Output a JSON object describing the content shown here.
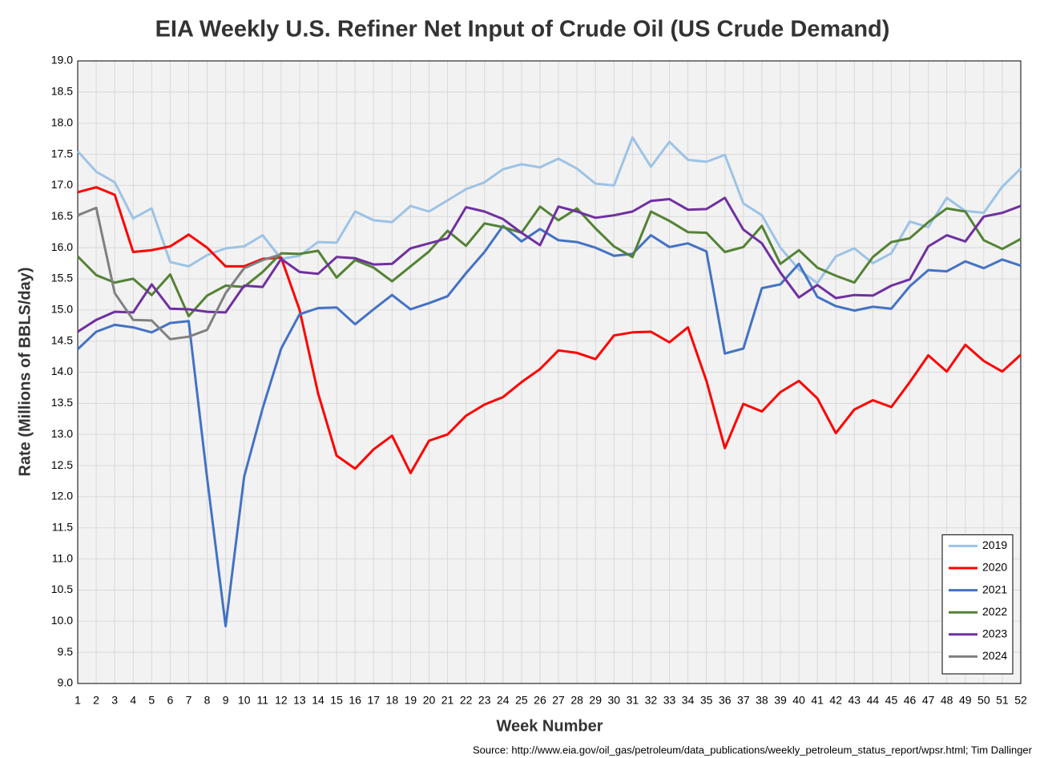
{
  "chart_data": {
    "type": "line",
    "title": "EIA Weekly U.S. Refiner Net Input of Crude Oil (US Crude Demand)",
    "x_label": "Week Number",
    "y_label": "Rate (Millions of BBLS/day)",
    "source": "Source: http://www.eia.gov/oil_gas/petroleum/data_publications/weekly_petroleum_status_report/wpsr.html; Tim Dallinger",
    "x": [
      1,
      2,
      3,
      4,
      5,
      6,
      7,
      8,
      9,
      10,
      11,
      12,
      13,
      14,
      15,
      16,
      17,
      18,
      19,
      20,
      21,
      22,
      23,
      24,
      25,
      26,
      27,
      28,
      29,
      30,
      31,
      32,
      33,
      34,
      35,
      36,
      37,
      38,
      39,
      40,
      41,
      42,
      43,
      44,
      45,
      46,
      47,
      48,
      49,
      50,
      51,
      52
    ],
    "xlim": [
      1,
      52
    ],
    "xticks": [
      1,
      2,
      3,
      4,
      5,
      6,
      7,
      8,
      9,
      10,
      11,
      12,
      13,
      14,
      15,
      16,
      17,
      18,
      19,
      20,
      21,
      22,
      23,
      24,
      25,
      26,
      27,
      28,
      29,
      30,
      31,
      32,
      33,
      34,
      35,
      36,
      37,
      38,
      39,
      40,
      41,
      42,
      43,
      44,
      45,
      46,
      47,
      48,
      49,
      50,
      51,
      52
    ],
    "ylim": [
      9,
      19
    ],
    "yticks": [
      {
        "value": 9,
        "label": "9.0"
      },
      {
        "value": 9.5,
        "label": "9.5"
      },
      {
        "value": 10,
        "label": "10.0"
      },
      {
        "value": 10.5,
        "label": "10.5"
      },
      {
        "value": 11,
        "label": "11.0"
      },
      {
        "value": 11.5,
        "label": "11.5"
      },
      {
        "value": 12,
        "label": "12.0"
      },
      {
        "value": 12.5,
        "label": "12.5"
      },
      {
        "value": 13,
        "label": "13.0"
      },
      {
        "value": 13.5,
        "label": "13.5"
      },
      {
        "value": 14,
        "label": "14.0"
      },
      {
        "value": 14.5,
        "label": "14.5"
      },
      {
        "value": 15,
        "label": "15.0"
      },
      {
        "value": 15.5,
        "label": "15.5"
      },
      {
        "value": 16,
        "label": "16.0"
      },
      {
        "value": 16.5,
        "label": "16.5"
      },
      {
        "value": 17,
        "label": "17.0"
      },
      {
        "value": 17.5,
        "label": "17.5"
      },
      {
        "value": 18,
        "label": "18.0"
      },
      {
        "value": 18.5,
        "label": "18.5"
      },
      {
        "value": 19,
        "label": "19.0"
      }
    ],
    "grid": true,
    "legend": "lower right",
    "series": [
      {
        "name": "2019",
        "color": "#9dc3e6",
        "values": [
          17.55,
          17.22,
          17.05,
          16.47,
          16.63,
          15.77,
          15.7,
          15.88,
          15.99,
          16.02,
          16.2,
          15.82,
          15.87,
          16.09,
          16.08,
          16.58,
          16.44,
          16.41,
          16.67,
          16.58,
          16.76,
          16.94,
          17.05,
          17.26,
          17.34,
          17.29,
          17.43,
          17.27,
          17.03,
          17.0,
          17.77,
          17.3,
          17.7,
          17.41,
          17.38,
          17.49,
          16.71,
          16.52,
          16.0,
          15.65,
          15.43,
          15.86,
          15.99,
          15.75,
          15.91,
          16.42,
          16.33,
          16.8,
          16.59,
          16.56,
          16.98,
          17.27
        ]
      },
      {
        "name": "2020",
        "color": "#ff0000",
        "values": [
          16.89,
          16.97,
          16.85,
          15.93,
          15.96,
          16.02,
          16.21,
          16.0,
          15.7,
          15.7,
          15.82,
          15.84,
          15.0,
          13.66,
          12.66,
          12.45,
          12.76,
          12.98,
          12.38,
          12.9,
          13.0,
          13.3,
          13.48,
          13.6,
          13.84,
          14.05,
          14.35,
          14.31,
          14.21,
          14.59,
          14.64,
          14.65,
          14.48,
          14.72,
          13.86,
          12.78,
          13.49,
          13.37,
          13.68,
          13.86,
          13.58,
          13.02,
          13.4,
          13.55,
          13.44,
          13.84,
          14.27,
          14.01,
          14.44,
          14.18,
          14.01,
          14.28
        ]
      },
      {
        "name": "2021",
        "color": "#4472c4",
        "values": [
          14.37,
          14.65,
          14.76,
          14.72,
          14.64,
          14.79,
          14.82,
          12.3,
          9.92,
          12.32,
          13.42,
          14.38,
          14.93,
          15.03,
          15.04,
          14.77,
          15.01,
          15.24,
          15.01,
          15.11,
          15.22,
          15.59,
          15.93,
          16.35,
          16.1,
          16.3,
          16.12,
          16.09,
          16.0,
          15.87,
          15.9,
          16.2,
          16.01,
          16.07,
          15.94,
          14.3,
          14.38,
          15.35,
          15.41,
          15.74,
          15.21,
          15.06,
          14.99,
          15.05,
          15.02,
          15.38,
          15.64,
          15.62,
          15.78,
          15.67,
          15.81,
          15.71
        ]
      },
      {
        "name": "2022",
        "color": "#548235",
        "values": [
          15.86,
          15.56,
          15.44,
          15.5,
          15.24,
          15.57,
          14.9,
          15.23,
          15.39,
          15.37,
          15.61,
          15.91,
          15.9,
          15.95,
          15.52,
          15.8,
          15.68,
          15.46,
          15.7,
          15.94,
          16.27,
          16.03,
          16.39,
          16.33,
          16.24,
          16.66,
          16.44,
          16.63,
          16.31,
          16.02,
          15.85,
          16.58,
          16.43,
          16.25,
          16.24,
          15.93,
          16.01,
          16.35,
          15.74,
          15.96,
          15.68,
          15.55,
          15.44,
          15.85,
          16.09,
          16.15,
          16.41,
          16.63,
          16.58,
          16.12,
          15.98,
          16.14
        ]
      },
      {
        "name": "2023",
        "color": "#7030a0",
        "values": [
          14.65,
          14.84,
          14.97,
          14.96,
          15.41,
          15.02,
          15.01,
          14.97,
          14.96,
          15.39,
          15.37,
          15.82,
          15.61,
          15.58,
          15.85,
          15.83,
          15.73,
          15.74,
          15.99,
          16.07,
          16.15,
          16.65,
          16.58,
          16.46,
          16.24,
          16.04,
          16.66,
          16.58,
          16.48,
          16.52,
          16.58,
          16.75,
          16.78,
          16.61,
          16.62,
          16.8,
          16.29,
          16.07,
          15.6,
          15.2,
          15.4,
          15.19,
          15.24,
          15.23,
          15.39,
          15.49,
          16.02,
          16.2,
          16.1,
          16.5,
          16.56,
          16.67
        ]
      },
      {
        "name": "2024",
        "color": "#808080",
        "values": [
          16.52,
          16.64,
          15.27,
          14.84,
          14.83,
          14.53,
          14.57,
          14.68,
          15.27,
          15.67,
          15.8,
          15.89,
          null,
          null,
          null,
          null,
          null,
          null,
          null,
          null,
          null,
          null,
          null,
          null,
          null,
          null,
          null,
          null,
          null,
          null,
          null,
          null,
          null,
          null,
          null,
          null,
          null,
          null,
          null,
          null,
          null,
          null,
          null,
          null,
          null,
          null,
          null,
          null,
          null,
          null,
          null,
          null
        ]
      }
    ]
  }
}
